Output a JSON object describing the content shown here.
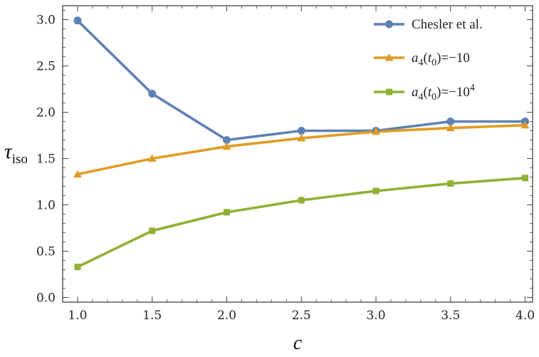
{
  "chart_data": {
    "type": "line",
    "title": "",
    "xlabel": "c",
    "ylabel": {
      "main": "τ",
      "sub": "iso"
    },
    "xlim": [
      0.9,
      4.05
    ],
    "ylim": [
      -0.05,
      3.15
    ],
    "xticks": [
      {
        "value": 1.0,
        "label": "1.0"
      },
      {
        "value": 1.5,
        "label": "1.5"
      },
      {
        "value": 2.0,
        "label": "2.0"
      },
      {
        "value": 2.5,
        "label": "2.5"
      },
      {
        "value": 3.0,
        "label": "3.0"
      },
      {
        "value": 3.5,
        "label": "3.5"
      },
      {
        "value": 4.0,
        "label": "4.0"
      }
    ],
    "yticks": [
      {
        "value": 0.0,
        "label": "0.0"
      },
      {
        "value": 0.5,
        "label": "0.5"
      },
      {
        "value": 1.0,
        "label": "1.0"
      },
      {
        "value": 1.5,
        "label": "1.5"
      },
      {
        "value": 2.0,
        "label": "2.0"
      },
      {
        "value": 2.5,
        "label": "2.5"
      },
      {
        "value": 3.0,
        "label": "3.0"
      }
    ],
    "x": [
      1.0,
      1.5,
      2.0,
      2.5,
      3.0,
      3.5,
      4.0
    ],
    "grid": false,
    "legend_position": "top-right",
    "series": [
      {
        "name": "Chesler et al.",
        "name_parts": {
          "text": "Chesler et al."
        },
        "marker": "circle",
        "color": "#5E81B5",
        "values": [
          2.99,
          2.2,
          1.7,
          1.8,
          1.8,
          1.9,
          1.9
        ]
      },
      {
        "name": "a4(t0)=−10",
        "name_parts": {
          "a": "a",
          "sub": "4",
          "mid": "(t",
          "sub2": "0",
          "end": ")=−10",
          "sup": ""
        },
        "marker": "triangle",
        "color": "#E19C24",
        "values": [
          1.33,
          1.5,
          1.63,
          1.72,
          1.79,
          1.83,
          1.86
        ]
      },
      {
        "name": "a4(t0)=−10^4",
        "name_parts": {
          "a": "a",
          "sub": "4",
          "mid": "(t",
          "sub2": "0",
          "end": ")=−10",
          "sup": "4"
        },
        "marker": "square",
        "color": "#8FB032",
        "values": [
          0.33,
          0.72,
          0.92,
          1.05,
          1.15,
          1.23,
          1.29
        ]
      }
    ]
  }
}
